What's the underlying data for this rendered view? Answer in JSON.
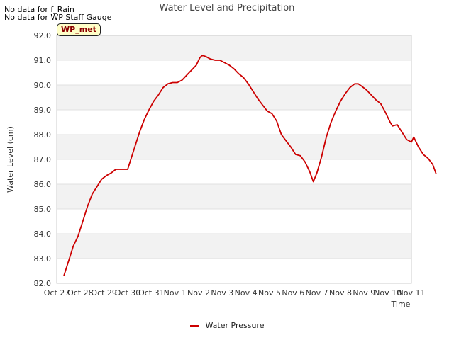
{
  "notes": [
    "No data for f_Rain",
    "No data for WP Staff Gauge"
  ],
  "site_badge": "WP_met",
  "chart_data": {
    "type": "line",
    "title": "Water Level and Precipitation",
    "xlabel": "Time",
    "ylabel": "Water Level (cm)",
    "ylim": [
      82.0,
      92.0
    ],
    "yticks": [
      82.0,
      83.0,
      84.0,
      85.0,
      86.0,
      87.0,
      88.0,
      89.0,
      90.0,
      91.0,
      92.0
    ],
    "xticks": [
      "Oct 27",
      "Oct 28",
      "Oct 29",
      "Oct 30",
      "Oct 31",
      "Nov 1",
      "Nov 2",
      "Nov 3",
      "Nov 4",
      "Nov 5",
      "Nov 6",
      "Nov 7",
      "Nov 8",
      "Nov 9",
      "Nov 10",
      "Nov 11"
    ],
    "xlim_days": [
      0,
      15
    ],
    "grid": "horizontal bands",
    "legend_position": "bottom-center",
    "series": [
      {
        "name": "Water Pressure",
        "color": "#cc0000",
        "points": [
          [
            0.3,
            82.3
          ],
          [
            0.5,
            82.9
          ],
          [
            0.7,
            83.5
          ],
          [
            0.9,
            83.9
          ],
          [
            1.1,
            84.5
          ],
          [
            1.3,
            85.1
          ],
          [
            1.5,
            85.6
          ],
          [
            1.7,
            85.9
          ],
          [
            1.9,
            86.2
          ],
          [
            2.1,
            86.35
          ],
          [
            2.3,
            86.45
          ],
          [
            2.5,
            86.6
          ],
          [
            2.7,
            86.6
          ],
          [
            2.9,
            86.6
          ],
          [
            3.0,
            86.6
          ],
          [
            3.1,
            86.9
          ],
          [
            3.3,
            87.5
          ],
          [
            3.5,
            88.1
          ],
          [
            3.7,
            88.6
          ],
          [
            3.9,
            89.0
          ],
          [
            4.1,
            89.35
          ],
          [
            4.3,
            89.6
          ],
          [
            4.5,
            89.9
          ],
          [
            4.7,
            90.05
          ],
          [
            4.9,
            90.1
          ],
          [
            5.1,
            90.1
          ],
          [
            5.3,
            90.2
          ],
          [
            5.5,
            90.4
          ],
          [
            5.7,
            90.6
          ],
          [
            5.9,
            90.8
          ],
          [
            6.05,
            91.1
          ],
          [
            6.15,
            91.2
          ],
          [
            6.3,
            91.15
          ],
          [
            6.5,
            91.05
          ],
          [
            6.7,
            91.0
          ],
          [
            6.9,
            91.0
          ],
          [
            7.1,
            90.9
          ],
          [
            7.3,
            90.8
          ],
          [
            7.5,
            90.65
          ],
          [
            7.7,
            90.45
          ],
          [
            7.9,
            90.3
          ],
          [
            8.1,
            90.05
          ],
          [
            8.3,
            89.75
          ],
          [
            8.5,
            89.45
          ],
          [
            8.7,
            89.2
          ],
          [
            8.9,
            88.95
          ],
          [
            9.1,
            88.85
          ],
          [
            9.3,
            88.55
          ],
          [
            9.5,
            88.0
          ],
          [
            9.7,
            87.75
          ],
          [
            9.9,
            87.5
          ],
          [
            10.1,
            87.2
          ],
          [
            10.3,
            87.15
          ],
          [
            10.5,
            86.9
          ],
          [
            10.7,
            86.5
          ],
          [
            10.85,
            86.1
          ],
          [
            11.0,
            86.45
          ],
          [
            11.2,
            87.1
          ],
          [
            11.4,
            87.9
          ],
          [
            11.6,
            88.5
          ],
          [
            11.8,
            88.95
          ],
          [
            12.0,
            89.35
          ],
          [
            12.2,
            89.65
          ],
          [
            12.4,
            89.9
          ],
          [
            12.6,
            90.05
          ],
          [
            12.75,
            90.05
          ],
          [
            12.9,
            89.95
          ],
          [
            13.1,
            89.8
          ],
          [
            13.3,
            89.6
          ],
          [
            13.5,
            89.4
          ],
          [
            13.7,
            89.25
          ],
          [
            13.9,
            88.9
          ],
          [
            14.1,
            88.5
          ],
          [
            14.2,
            88.35
          ],
          [
            14.4,
            88.4
          ],
          [
            14.6,
            88.1
          ],
          [
            14.8,
            87.8
          ],
          [
            15.0,
            87.7
          ],
          [
            15.1,
            87.9
          ],
          [
            15.3,
            87.5
          ],
          [
            15.5,
            87.2
          ],
          [
            15.7,
            87.05
          ],
          [
            15.9,
            86.8
          ],
          [
            16.05,
            86.4
          ]
        ]
      }
    ]
  }
}
